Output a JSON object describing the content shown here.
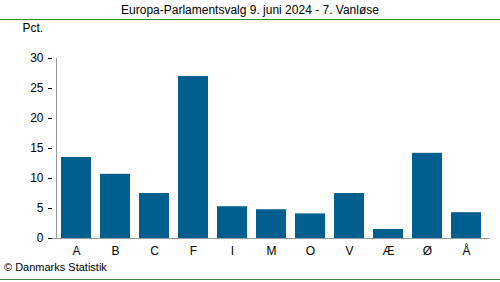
{
  "chart_data": {
    "type": "bar",
    "title": "Europa-Parlamentsvalg 9. juni 2024 - 7. Vanløse",
    "y_label": "Pct.",
    "source": "© Danmarks Statistik",
    "categories": [
      "A",
      "B",
      "C",
      "F",
      "I",
      "M",
      "O",
      "V",
      "Æ",
      "Ø",
      "Å"
    ],
    "values": [
      13.5,
      10.7,
      7.5,
      27.0,
      5.3,
      4.8,
      4.1,
      7.5,
      1.5,
      14.2,
      4.3
    ],
    "color": "#005f8f",
    "ylim": [
      0,
      30
    ],
    "yticks": [
      0,
      5,
      10,
      15,
      20,
      25,
      30
    ],
    "grid": false
  }
}
